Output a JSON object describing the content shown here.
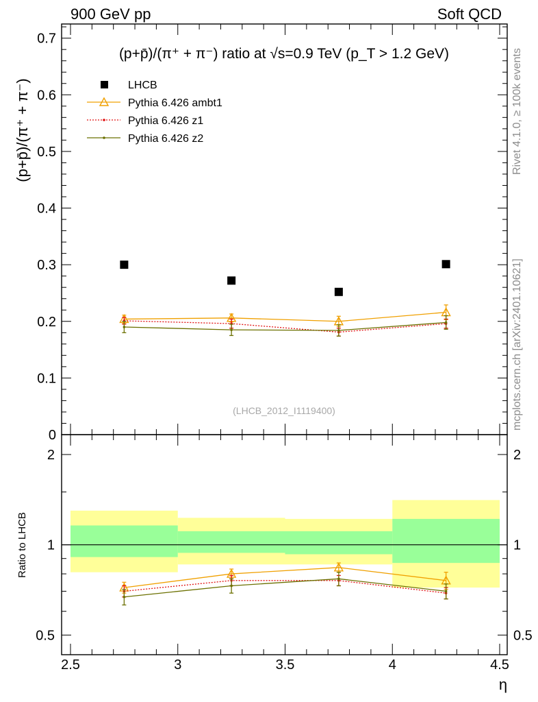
{
  "header": {
    "left": "900 GeV pp",
    "right": "Soft QCD"
  },
  "side": {
    "top": "Rivet 4.1.0, ≥ 100k events",
    "bottom": "mcplots.cern.ch [arXiv:2401.10621]"
  },
  "watermark": "(LHCB_2012_I1119400)",
  "chart_data": {
    "type": "scatter",
    "title": "(p+p̄)/(π⁺ + π⁻) ratio at √s=0.9 TeV (p_T > 1.2 GeV)",
    "xlabel": "η",
    "ylabel": "(p+p̄)/(π⁺ + π⁻)",
    "xlim": [
      2.5,
      4.5
    ],
    "ylim": [
      0,
      0.725
    ],
    "x_ticks": [
      "2.5",
      "3",
      "3.5",
      "4",
      "4.5"
    ],
    "y_ticks": [
      "0",
      "0.1",
      "0.2",
      "0.3",
      "0.4",
      "0.5",
      "0.6",
      "0.7"
    ],
    "x": [
      2.75,
      3.25,
      3.75,
      4.25
    ],
    "bin_edges": [
      2.5,
      3.0,
      3.5,
      4.0,
      4.5
    ],
    "series": [
      {
        "name": "LHCB",
        "style": "data",
        "color": "#000000",
        "values": [
          0.3,
          0.272,
          0.252,
          0.301
        ]
      },
      {
        "name": "Pythia 6.426 ambt1",
        "style": "triangle",
        "color": "#f0a000",
        "values": [
          0.204,
          0.206,
          0.2,
          0.216
        ],
        "errors": [
          0.007,
          0.007,
          0.009,
          0.013
        ]
      },
      {
        "name": "Pythia 6.426 z1",
        "style": "dotted",
        "color": "#e01010",
        "values": [
          0.201,
          0.196,
          0.181,
          0.196
        ],
        "errors": [
          0.006,
          0.008,
          0.007,
          0.008
        ]
      },
      {
        "name": "Pythia 6.426 z2",
        "style": "solid",
        "color": "#6b7000",
        "values": [
          0.19,
          0.185,
          0.184,
          0.198
        ],
        "errors": [
          0.01,
          0.01,
          0.01,
          0.012
        ]
      }
    ],
    "ratio": {
      "ylabel": "Ratio to LHCB",
      "ylim": [
        0.43,
        2.33
      ],
      "y_ticks": [
        "0.5",
        "1",
        "2"
      ],
      "y_tick_values": [
        0.5,
        1,
        2
      ],
      "band_inner": [
        [
          0.91,
          1.16
        ],
        [
          0.94,
          1.11
        ],
        [
          0.93,
          1.11
        ],
        [
          0.87,
          1.22
        ]
      ],
      "band_outer": [
        [
          0.81,
          1.3
        ],
        [
          0.86,
          1.23
        ],
        [
          0.86,
          1.22
        ],
        [
          0.72,
          1.41
        ]
      ],
      "series": [
        {
          "name": "Pythia 6.426 ambt1",
          "values": [
            0.72,
            0.8,
            0.84,
            0.76
          ],
          "errors": [
            0.03,
            0.03,
            0.03,
            0.05
          ]
        },
        {
          "name": "Pythia 6.426 z1",
          "values": [
            0.7,
            0.76,
            0.76,
            0.69
          ],
          "errors": [
            0.03,
            0.03,
            0.03,
            0.03
          ]
        },
        {
          "name": "Pythia 6.426 z2",
          "values": [
            0.67,
            0.73,
            0.77,
            0.7
          ],
          "errors": [
            0.04,
            0.04,
            0.04,
            0.04
          ]
        }
      ]
    }
  }
}
